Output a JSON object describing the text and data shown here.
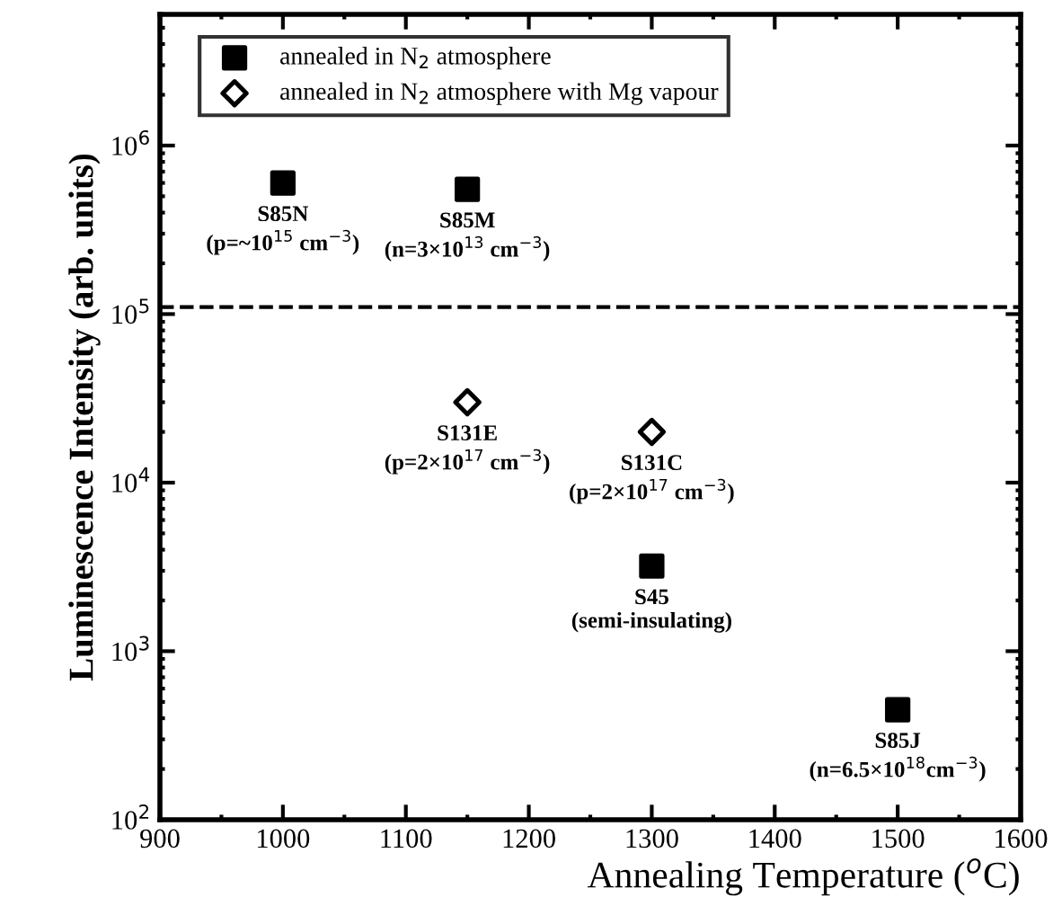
{
  "chart_data": {
    "type": "scatter",
    "xlabel": "Annealing Temperature ($^{o}$C)",
    "ylabel": "Luminescence Intensity (arb. units)",
    "series": [
      {
        "name": "annealed in N$_{2}$ atmosphere",
        "color": "#000000",
        "marker": "square",
        "x": [
          1000,
          1150,
          1300,
          1500
        ],
        "values": [
          600000,
          550000,
          3200,
          450
        ]
      },
      {
        "name": "annealed in N$_{2}$ atmosphere with Mg vapour",
        "color": "#000000",
        "marker": "diamond",
        "x": [
          1150,
          1300
        ],
        "values": [
          30000,
          20000
        ]
      }
    ],
    "log": "y",
    "xlim": [
      900,
      1600
    ],
    "ylim": [
      100,
      6000000
    ],
    "xticks": [
      900,
      1000,
      1100,
      1200,
      1300,
      1400,
      1500,
      1600
    ],
    "yticks": [
      {
        "value": 100,
        "label": "10$^{2}$"
      },
      {
        "value": 1000,
        "label": "10$^{3}$"
      },
      {
        "value": 10000,
        "label": "10$^{4}$"
      },
      {
        "value": 100000,
        "label": "10$^{5}$"
      },
      {
        "value": 1000000,
        "label": "10$^{6}$"
      }
    ],
    "ref_lines": [
      {
        "axis": "y",
        "value": 110000,
        "color": "#000000",
        "line_style": "dashed"
      }
    ],
    "annotations": [
      {
        "text": "S85N\n(p=~10$^{15}$ cm$^{−3}$)",
        "x": 1000,
        "y": 600000
      },
      {
        "text": "S85M\n(n=3×10$^{13}$ cm$^{−3}$)",
        "x": 1150,
        "y": 550000
      },
      {
        "text": "S131E\n(p=2×10$^{17}$ cm$^{−3}$)",
        "x": 1150,
        "y": 30000
      },
      {
        "text": "S131C\n(p=2×10$^{17}$ cm$^{−3}$)",
        "x": 1300,
        "y": 20000
      },
      {
        "text": "S45\n(semi-insulating)",
        "x": 1300,
        "y": 3200
      },
      {
        "text": "S85J\n(n=6.5×10$^{18}$cm$^{−3}$)",
        "x": 1500,
        "y": 450
      }
    ],
    "legend": "top left",
    "grid": false
  }
}
